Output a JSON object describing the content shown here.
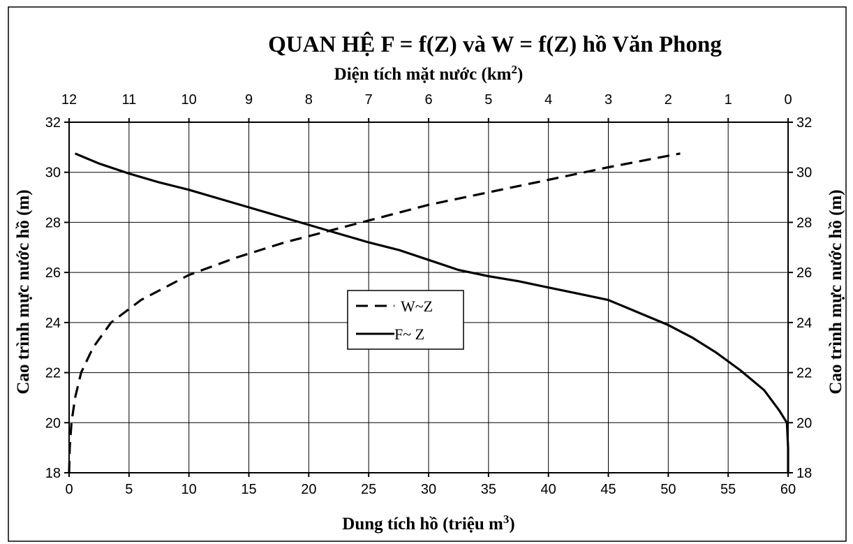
{
  "chart_data": {
    "type": "line",
    "title": "QUAN HỆ F =  f(Z) và W =  f(Z) hồ Văn Phong",
    "x_bottom": {
      "label": "Dung tích hồ (triệu m",
      "label_sup": "3",
      "label_end": ")",
      "range": [
        0,
        60
      ],
      "ticks": [
        "0",
        "5",
        "10",
        "15",
        "20",
        "25",
        "30",
        "35",
        "40",
        "45",
        "50",
        "55",
        "60"
      ]
    },
    "x_top": {
      "label": "Diện tích mặt nước (km",
      "label_sup": "2",
      "label_end": ")",
      "range": [
        12,
        0
      ],
      "ticks": [
        "12",
        "11",
        "10",
        "9",
        "8",
        "7",
        "6",
        "5",
        "4",
        "3",
        "2",
        "1",
        "0"
      ]
    },
    "y": {
      "label_left": "Cao trình mực nước hồ (m)",
      "label_right": "Cao trình mực nước hồ  (m)",
      "range": [
        18,
        32
      ],
      "ticks": [
        "18",
        "20",
        "22",
        "24",
        "26",
        "28",
        "30",
        "32"
      ]
    },
    "grid": true,
    "legend_position": "center",
    "series": [
      {
        "name": "W~Z",
        "axis": "bottom",
        "style": "dashed",
        "x": [
          0,
          0.05,
          0.2,
          0.5,
          1,
          2,
          3.5,
          6,
          10,
          14,
          18,
          22,
          26,
          30,
          35,
          40,
          45,
          51
        ],
        "y": [
          18,
          19,
          20,
          21,
          22,
          23,
          24,
          24.9,
          25.9,
          26.6,
          27.2,
          27.7,
          28.2,
          28.7,
          29.2,
          29.7,
          30.2,
          30.75
        ]
      },
      {
        "name": "F~ Z",
        "axis": "top",
        "style": "solid",
        "x": [
          0,
          0,
          0.02,
          0.15,
          0.4,
          0.8,
          1.2,
          1.6,
          2.0,
          2.5,
          3.0,
          3.5,
          4.0,
          4.5,
          5.0,
          5.5,
          6.0,
          6.5,
          7.0,
          7.5,
          8.0,
          8.5,
          9.0,
          9.5,
          10.0,
          10.5,
          11.0,
          11.5,
          11.9
        ],
        "y": [
          18,
          19,
          20,
          20.5,
          21.3,
          22.1,
          22.8,
          23.4,
          23.9,
          24.4,
          24.9,
          25.15,
          25.4,
          25.65,
          25.85,
          26.1,
          26.5,
          26.9,
          27.2,
          27.55,
          27.9,
          28.25,
          28.6,
          28.95,
          29.3,
          29.6,
          29.95,
          30.35,
          30.75
        ]
      }
    ]
  }
}
